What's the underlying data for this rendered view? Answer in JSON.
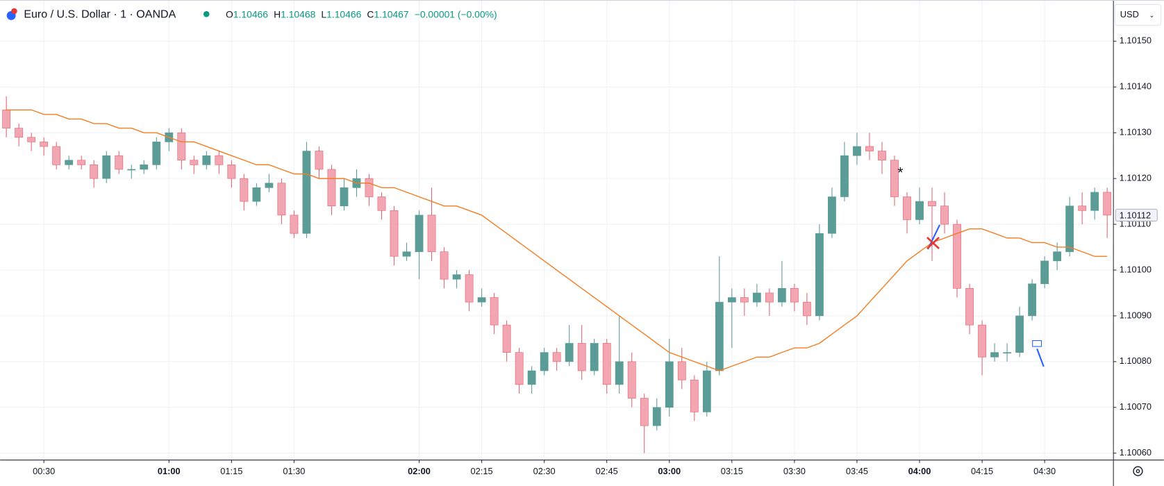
{
  "header": {
    "symbol": "Euro / U.S. Dollar · 1 · OANDA",
    "o_label": "O",
    "o": "1.10466",
    "h_label": "H",
    "h": "1.10468",
    "l_label": "L",
    "l": "1.10466",
    "c_label": "C",
    "c": "1.10467",
    "change": "−0.00001 (−0.00%)"
  },
  "currency": "USD",
  "chart_data": {
    "type": "candlestick",
    "up_color": "#5b9c97",
    "down_color": "#f2a6b1",
    "down_wick": "#e5646f",
    "candles": [
      [
        1.10135,
        1.10138,
        1.10129,
        1.10131
      ],
      [
        1.10131,
        1.10132,
        1.10127,
        1.10129
      ],
      [
        1.10129,
        1.1013,
        1.10126,
        1.10128
      ],
      [
        1.10128,
        1.10129,
        1.10125,
        1.10127
      ],
      [
        1.10127,
        1.10128,
        1.10122,
        1.10123
      ],
      [
        1.10123,
        1.10125,
        1.10122,
        1.10124
      ],
      [
        1.10124,
        1.10125,
        1.10122,
        1.10123
      ],
      [
        1.10123,
        1.10124,
        1.10118,
        1.1012
      ],
      [
        1.1012,
        1.10126,
        1.10119,
        1.10125
      ],
      [
        1.10125,
        1.10126,
        1.10121,
        1.10122
      ],
      [
        1.10122,
        1.10123,
        1.1012,
        1.10122
      ],
      [
        1.10122,
        1.10124,
        1.10121,
        1.10123
      ],
      [
        1.10123,
        1.10129,
        1.10122,
        1.10128
      ],
      [
        1.10128,
        1.10131,
        1.10126,
        1.1013
      ],
      [
        1.1013,
        1.10131,
        1.10122,
        1.10124
      ],
      [
        1.10124,
        1.10125,
        1.10121,
        1.10123
      ],
      [
        1.10123,
        1.10126,
        1.10122,
        1.10125
      ],
      [
        1.10125,
        1.10126,
        1.10121,
        1.10123
      ],
      [
        1.10123,
        1.10124,
        1.10118,
        1.1012
      ],
      [
        1.1012,
        1.10121,
        1.10113,
        1.10115
      ],
      [
        1.10115,
        1.10119,
        1.10114,
        1.10118
      ],
      [
        1.10118,
        1.10121,
        1.10117,
        1.10119
      ],
      [
        1.10119,
        1.1012,
        1.1011,
        1.10112
      ],
      [
        1.10112,
        1.10113,
        1.10107,
        1.10108
      ],
      [
        1.10108,
        1.10128,
        1.10107,
        1.10126
      ],
      [
        1.10126,
        1.10127,
        1.1012,
        1.10122
      ],
      [
        1.10122,
        1.10123,
        1.10112,
        1.10114
      ],
      [
        1.10114,
        1.1012,
        1.10113,
        1.10118
      ],
      [
        1.10118,
        1.10122,
        1.10116,
        1.1012
      ],
      [
        1.1012,
        1.10121,
        1.10114,
        1.10116
      ],
      [
        1.10116,
        1.10117,
        1.10111,
        1.10113
      ],
      [
        1.10113,
        1.10114,
        1.10101,
        1.10103
      ],
      [
        1.10103,
        1.10106,
        1.10102,
        1.10104
      ],
      [
        1.10104,
        1.10113,
        1.10098,
        1.10112
      ],
      [
        1.10112,
        1.10118,
        1.10102,
        1.10104
      ],
      [
        1.10104,
        1.10105,
        1.10096,
        1.10098
      ],
      [
        1.10098,
        1.101,
        1.10096,
        1.10099
      ],
      [
        1.10099,
        1.101,
        1.10091,
        1.10093
      ],
      [
        1.10093,
        1.10096,
        1.10092,
        1.10094
      ],
      [
        1.10094,
        1.10095,
        1.10086,
        1.10088
      ],
      [
        1.10088,
        1.10089,
        1.1008,
        1.10082
      ],
      [
        1.10082,
        1.10083,
        1.10073,
        1.10075
      ],
      [
        1.10075,
        1.10079,
        1.10073,
        1.10078
      ],
      [
        1.10078,
        1.10083,
        1.10077,
        1.10082
      ],
      [
        1.10082,
        1.10083,
        1.10078,
        1.1008
      ],
      [
        1.1008,
        1.10088,
        1.10079,
        1.10084
      ],
      [
        1.10084,
        1.10088,
        1.10076,
        1.10078
      ],
      [
        1.10078,
        1.10085,
        1.10077,
        1.10084
      ],
      [
        1.10084,
        1.10085,
        1.10073,
        1.10075
      ],
      [
        1.10075,
        1.1009,
        1.10073,
        1.1008
      ],
      [
        1.1008,
        1.10082,
        1.1007,
        1.10072
      ],
      [
        1.10072,
        1.10073,
        1.1006,
        1.10066
      ],
      [
        1.10066,
        1.10072,
        1.10065,
        1.1007
      ],
      [
        1.1007,
        1.10085,
        1.10068,
        1.1008
      ],
      [
        1.1008,
        1.10083,
        1.10074,
        1.10076
      ],
      [
        1.10076,
        1.10077,
        1.10067,
        1.10069
      ],
      [
        1.10069,
        1.1008,
        1.10068,
        1.10078
      ],
      [
        1.10078,
        1.10103,
        1.10077,
        1.10093
      ],
      [
        1.10093,
        1.10096,
        1.10083,
        1.10094
      ],
      [
        1.10094,
        1.10096,
        1.1009,
        1.10093
      ],
      [
        1.10093,
        1.10097,
        1.10092,
        1.10095
      ],
      [
        1.10095,
        1.10096,
        1.1009,
        1.10093
      ],
      [
        1.10093,
        1.10102,
        1.10092,
        1.10096
      ],
      [
        1.10096,
        1.10097,
        1.10091,
        1.10093
      ],
      [
        1.10093,
        1.10095,
        1.10088,
        1.1009
      ],
      [
        1.1009,
        1.1011,
        1.10089,
        1.10108
      ],
      [
        1.10108,
        1.10118,
        1.10107,
        1.10116
      ],
      [
        1.10116,
        1.10128,
        1.10115,
        1.10125
      ],
      [
        1.10125,
        1.1013,
        1.10123,
        1.10127
      ],
      [
        1.10127,
        1.1013,
        1.10124,
        1.10126
      ],
      [
        1.10126,
        1.10128,
        1.10121,
        1.10124
      ],
      [
        1.10124,
        1.10125,
        1.10114,
        1.10116
      ],
      [
        1.10116,
        1.10117,
        1.10108,
        1.10111
      ],
      [
        1.10111,
        1.10118,
        1.1011,
        1.10115
      ],
      [
        1.10115,
        1.10118,
        1.10102,
        1.10114
      ],
      [
        1.10114,
        1.10117,
        1.10108,
        1.1011
      ],
      [
        1.1011,
        1.10111,
        1.10094,
        1.10096
      ],
      [
        1.10096,
        1.10097,
        1.10086,
        1.10088
      ],
      [
        1.10088,
        1.10089,
        1.10077,
        1.10081
      ],
      [
        1.10081,
        1.10084,
        1.1008,
        1.10082
      ],
      [
        1.10082,
        1.10084,
        1.1008,
        1.10082
      ],
      [
        1.10082,
        1.10092,
        1.10081,
        1.1009
      ],
      [
        1.1009,
        1.10098,
        1.10089,
        1.10097
      ],
      [
        1.10097,
        1.10103,
        1.10096,
        1.10102
      ],
      [
        1.10102,
        1.10106,
        1.101,
        1.10104
      ],
      [
        1.10104,
        1.10116,
        1.10103,
        1.10114
      ],
      [
        1.10114,
        1.10117,
        1.1011,
        1.10113
      ],
      [
        1.10113,
        1.10118,
        1.10111,
        1.10117
      ],
      [
        1.10117,
        1.10118,
        1.10107,
        1.10112
      ]
    ],
    "ma_color": "#f57c1f",
    "ma_values": [
      1.10135,
      1.10135,
      1.10135,
      1.10134,
      1.10134,
      1.10133,
      1.10133,
      1.10132,
      1.10132,
      1.10131,
      1.10131,
      1.1013,
      1.1013,
      1.10129,
      1.10128,
      1.10128,
      1.10127,
      1.10126,
      1.10125,
      1.10124,
      1.10123,
      1.10123,
      1.10122,
      1.10121,
      1.10121,
      1.1012,
      1.1012,
      1.1012,
      1.10119,
      1.10119,
      1.10118,
      1.10118,
      1.10117,
      1.10116,
      1.10115,
      1.10114,
      1.10114,
      1.10113,
      1.10112,
      1.1011,
      1.10108,
      1.10106,
      1.10104,
      1.10102,
      1.101,
      1.10098,
      1.10096,
      1.10094,
      1.10092,
      1.1009,
      1.10088,
      1.10086,
      1.10084,
      1.10082,
      1.10081,
      1.1008,
      1.10079,
      1.10078,
      1.10079,
      1.1008,
      1.10081,
      1.10081,
      1.10082,
      1.10083,
      1.10083,
      1.10084,
      1.10086,
      1.10088,
      1.1009,
      1.10093,
      1.10096,
      1.10099,
      1.10102,
      1.10104,
      1.10106,
      1.10107,
      1.10108,
      1.10109,
      1.10109,
      1.10108,
      1.10107,
      1.10107,
      1.10106,
      1.10106,
      1.10105,
      1.10105,
      1.10104,
      1.10103,
      1.10103
    ],
    "ylim": [
      1.100585,
      1.10159
    ],
    "yticks": [
      {
        "value": 1.1006,
        "label": "1.10060"
      },
      {
        "value": 1.1007,
        "label": "1.10070"
      },
      {
        "value": 1.1008,
        "label": "1.10080"
      },
      {
        "value": 1.1009,
        "label": "1.10090"
      },
      {
        "value": 1.101,
        "label": "1.10100"
      },
      {
        "value": 1.1011,
        "label": "1.10110"
      },
      {
        "value": 1.1012,
        "label": "1.10120"
      },
      {
        "value": 1.1013,
        "label": "1.10130"
      },
      {
        "value": 1.1014,
        "label": "1.10140"
      },
      {
        "value": 1.1015,
        "label": "1.10150"
      }
    ],
    "xticks": [
      {
        "value": 3,
        "label": "00:30"
      },
      {
        "value": 13,
        "label": "01:00"
      },
      {
        "value": 18,
        "label": "01:15"
      },
      {
        "value": 23,
        "label": "01:30"
      },
      {
        "value": 33,
        "label": "02:00"
      },
      {
        "value": 38,
        "label": "02:15"
      },
      {
        "value": 43,
        "label": "02:30"
      },
      {
        "value": 48,
        "label": "02:45"
      },
      {
        "value": 53,
        "label": "03:00"
      },
      {
        "value": 58,
        "label": "03:15"
      },
      {
        "value": 63,
        "label": "03:30"
      },
      {
        "value": 68,
        "label": "03:45"
      },
      {
        "value": 73,
        "label": "04:00"
      },
      {
        "value": 78,
        "label": "04:15"
      },
      {
        "value": 83,
        "label": "04:30"
      }
    ],
    "last_price": {
      "value": 1.10112,
      "label": "1.10112"
    },
    "grid": true
  }
}
